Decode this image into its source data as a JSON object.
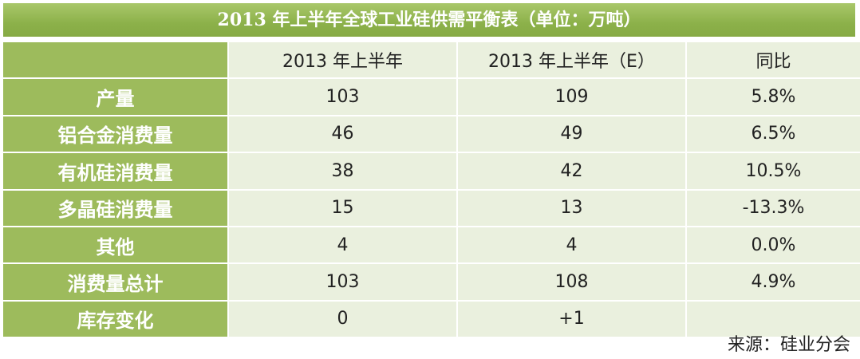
{
  "title": "2013 年上半年全球工业硅供需平衡表（单位：万吨）",
  "table": {
    "headers": [
      "2013 年上半年",
      "2013 年上半年（E）",
      "同比"
    ],
    "rows": [
      [
        "产量",
        "103",
        "109",
        "5.8%"
      ],
      [
        "铝合金消费量",
        "46",
        "49",
        "6.5%"
      ],
      [
        "有机硅消费量",
        "38",
        "42",
        "10.5%"
      ],
      [
        "多晶硅消费量",
        "15",
        "13",
        "-13.3%"
      ],
      [
        "其他",
        "4",
        "4",
        "0.0%"
      ],
      [
        "消费量总计",
        "103",
        "108",
        "4.9%"
      ],
      [
        "库存变化",
        "0",
        "+1"
      ]
    ]
  },
  "source": "来源：硅业分会"
}
